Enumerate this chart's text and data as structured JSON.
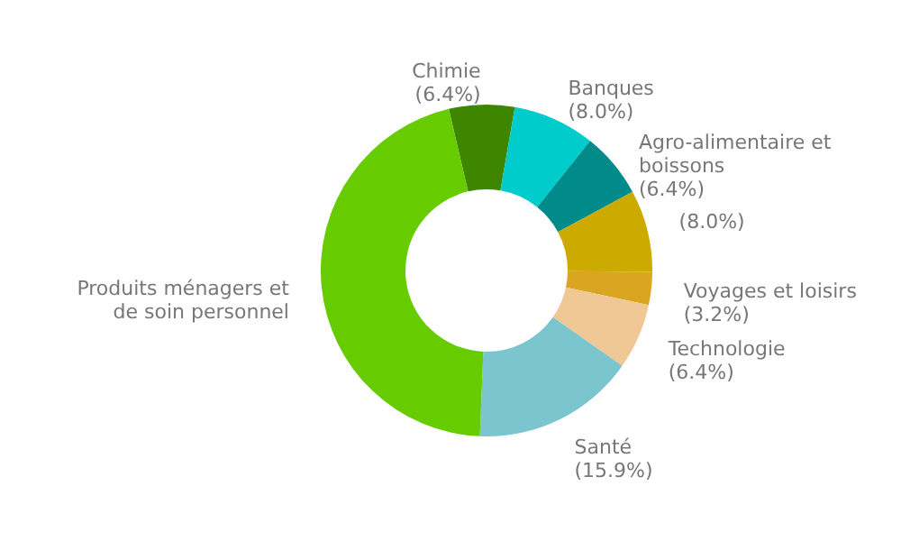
{
  "chart_data": {
    "type": "donut",
    "categories": [
      "Chimie",
      "Banques",
      "Agro-alimentaire et boissons",
      null,
      "Voyages et loisirs",
      "Technologie",
      "Santé",
      "Produits ménagers et de soin personnel"
    ],
    "values": [
      6.4,
      8.0,
      6.4,
      8.0,
      3.2,
      6.4,
      15.9,
      45.7
    ],
    "value_labels": [
      "(6.4%)",
      "(8.0%)",
      "(6.4%)",
      "(8.0%)",
      " (3.2%)",
      "(6.4%)",
      "(15.9%)",
      null
    ],
    "colors": [
      "#3f8600",
      "#00cccc",
      "#008b8b",
      "#ccaa00",
      "#daa520",
      "#f0c896",
      "#7ac5ce",
      "#66cc00"
    ]
  }
}
